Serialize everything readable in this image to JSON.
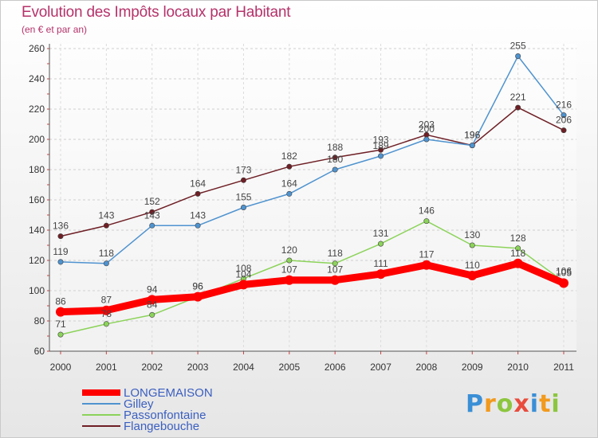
{
  "brand": {
    "logo_text": "Proxiti"
  },
  "chart_data": {
    "type": "line",
    "title": "Evolution des Impôts locaux par Habitant",
    "subtitle": "(en € et par an)",
    "xlabel": "",
    "ylabel": "",
    "x": [
      "2000",
      "2001",
      "2002",
      "2003",
      "2004",
      "2005",
      "2006",
      "2007",
      "2008",
      "2009",
      "2010",
      "2011"
    ],
    "ylim": [
      60,
      260
    ],
    "yticks": [
      60,
      80,
      100,
      120,
      140,
      160,
      180,
      200,
      220,
      240,
      260
    ],
    "series": [
      {
        "name": "LONGEMAISON",
        "color": "#ff0000",
        "values": [
          86,
          87,
          94,
          96,
          104,
          107,
          107,
          111,
          117,
          110,
          118,
          105
        ],
        "labels": [
          "86",
          "87",
          "94",
          "96",
          "104",
          "107",
          "107",
          "111",
          "117",
          "110",
          "118",
          "105"
        ]
      },
      {
        "name": "Gilley",
        "color": "#4f93cf",
        "values": [
          119,
          118,
          143,
          143,
          155,
          164,
          180,
          189,
          200,
          196,
          255,
          216
        ],
        "labels": [
          "119",
          "118",
          "143",
          "143",
          "155",
          "164",
          "180",
          "189",
          "200",
          "196",
          "255",
          "216"
        ]
      },
      {
        "name": "Passonfontaine",
        "color": "#8cd35a",
        "values": [
          71,
          78,
          84,
          96,
          108,
          120,
          118,
          131,
          146,
          130,
          128,
          106
        ],
        "labels": [
          "71",
          "78",
          "84",
          "96",
          "108",
          "120",
          "118",
          "131",
          "146",
          "130",
          "128",
          "106"
        ]
      },
      {
        "name": "Flangebouche",
        "color": "#6e1f25",
        "values": [
          136,
          143,
          152,
          164,
          173,
          182,
          188,
          193,
          203,
          196,
          221,
          206
        ],
        "labels": [
          "136",
          "143",
          "152",
          "164",
          "173",
          "182",
          "188",
          "193",
          "203",
          "196",
          "221",
          "206"
        ]
      }
    ],
    "legend_position": "bottom-left"
  }
}
